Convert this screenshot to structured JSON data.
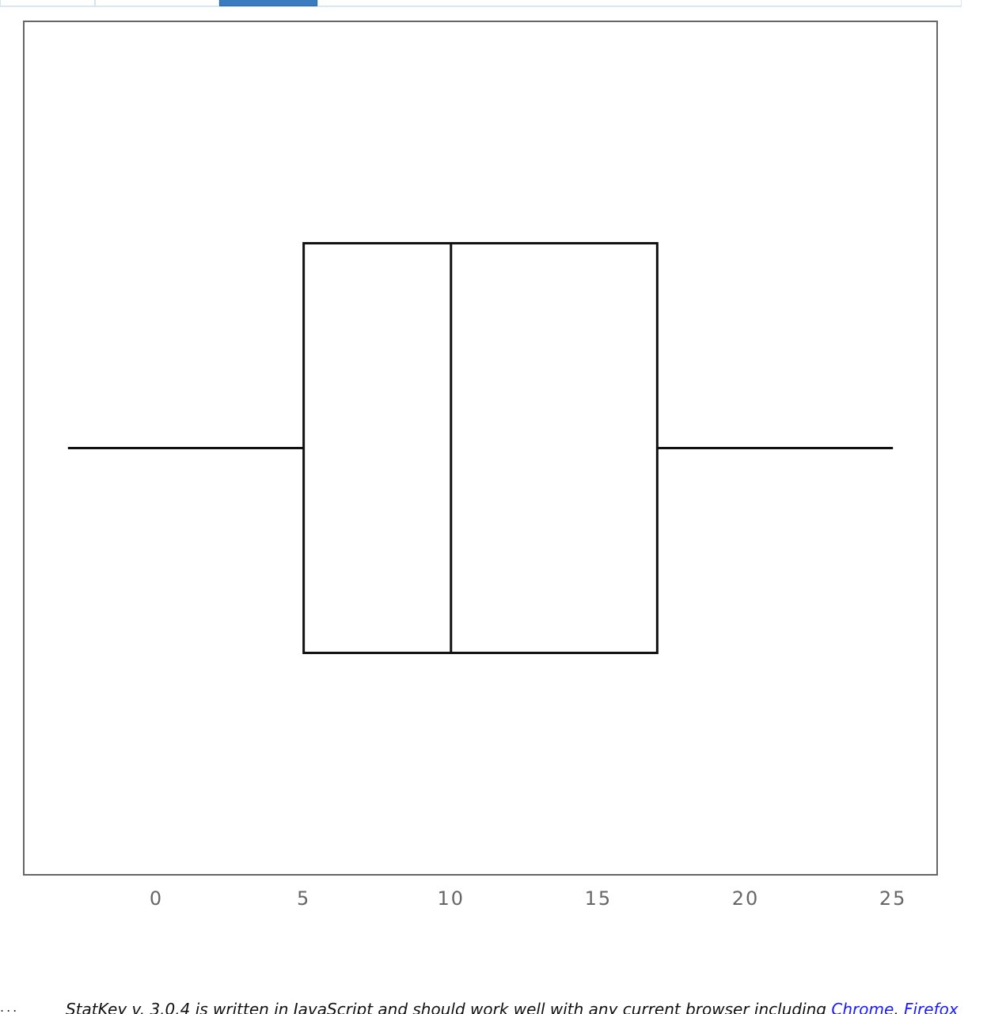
{
  "tabs": [
    {
      "label": "",
      "active": false
    },
    {
      "label": "",
      "active": false
    },
    {
      "label": "",
      "active": true
    },
    {
      "label": "",
      "active": false
    }
  ],
  "chart_data": {
    "type": "boxplot",
    "title": "",
    "xlabel": "",
    "ylabel": "",
    "xlim": [
      -4.5,
      26.5
    ],
    "xticks": [
      0,
      5,
      10,
      15,
      20,
      25
    ],
    "tick_labels": [
      "0",
      "5",
      "10",
      "15",
      "20",
      "25"
    ],
    "grid": false,
    "box": {
      "min": -3,
      "q1": 5,
      "median": 10,
      "q3": 17,
      "max": 25
    }
  },
  "footer": {
    "dots": "...",
    "text": "StatKey v. 3.0.4 is written in JavaScript and should work well with any current browser including ",
    "links": [
      "Chrome",
      "Firefox"
    ],
    "separator": ", "
  },
  "colors": {
    "tab_active": "#3b7bbf",
    "plot_border": "#666666",
    "box_stroke": "#111111",
    "tick_label": "#666666",
    "link": "#1a1aff"
  }
}
